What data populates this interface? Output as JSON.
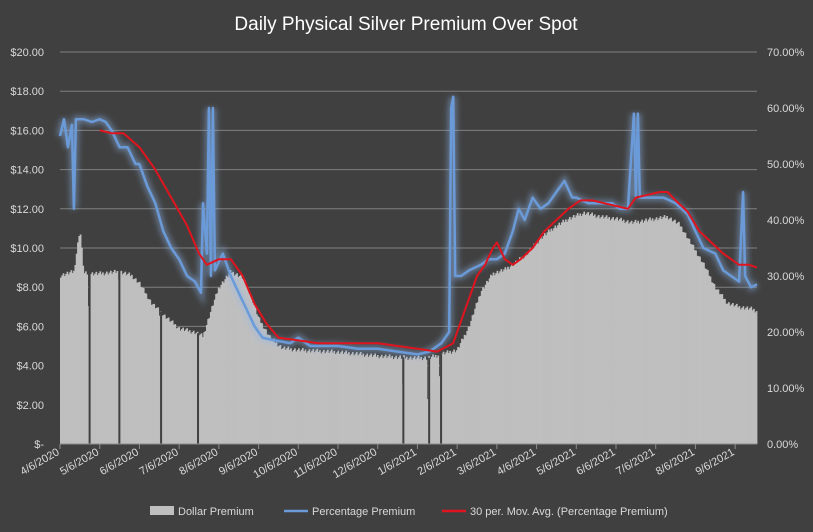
{
  "chart_data": {
    "type": "bar",
    "title": "Daily Physical Silver Premium Over Spot",
    "background": "#404040",
    "grid": true,
    "legend_position": "bottom",
    "x_ticks": [
      "4/6/2020",
      "5/6/2020",
      "6/6/2020",
      "7/6/2020",
      "8/6/2020",
      "9/6/2020",
      "10/6/2020",
      "11/6/2020",
      "12/6/2020",
      "1/6/2021",
      "2/6/2021",
      "3/6/2021",
      "4/6/2021",
      "5/6/2021",
      "6/6/2021",
      "7/6/2021",
      "8/6/2021",
      "9/6/2021"
    ],
    "y_left": {
      "ylim": [
        0,
        20
      ],
      "ticks": [
        0,
        2,
        4,
        6,
        8,
        10,
        12,
        14,
        16,
        18,
        20
      ],
      "labels": [
        "$-",
        "$2.00",
        "$4.00",
        "$6.00",
        "$8.00",
        "$10.00",
        "$12.00",
        "$14.00",
        "$16.00",
        "$18.00",
        "$20.00"
      ]
    },
    "y_right": {
      "ylim": [
        0,
        0.7
      ],
      "ticks": [
        0,
        0.1,
        0.2,
        0.3,
        0.4,
        0.5,
        0.6,
        0.7
      ],
      "labels": [
        "0.00%",
        "10.00%",
        "20.00%",
        "30.00%",
        "40.00%",
        "50.00%",
        "60.00%",
        "70.00%"
      ]
    },
    "x_range": [
      0,
      17.55
    ],
    "series": [
      {
        "name": "Dollar Premium",
        "chart": "bar",
        "axis": "left",
        "color": "#bfbfbf",
        "anchors": [
          [
            0,
            8.6
          ],
          [
            0.35,
            8.8
          ],
          [
            0.5,
            11.0
          ],
          [
            0.6,
            8.7
          ],
          [
            1.0,
            8.7
          ],
          [
            1.5,
            8.8
          ],
          [
            1.8,
            8.6
          ],
          [
            2.0,
            8.2
          ],
          [
            2.3,
            7.2
          ],
          [
            2.6,
            6.6
          ],
          [
            3.0,
            5.9
          ],
          [
            3.4,
            5.7
          ],
          [
            3.6,
            5.5
          ],
          [
            3.8,
            6.8
          ],
          [
            4.0,
            8.0
          ],
          [
            4.3,
            8.8
          ],
          [
            4.6,
            8.5
          ],
          [
            4.8,
            7.6
          ],
          [
            5.0,
            6.4
          ],
          [
            5.3,
            5.4
          ],
          [
            5.6,
            4.9
          ],
          [
            6.0,
            4.8
          ],
          [
            7.0,
            4.7
          ],
          [
            8.0,
            4.5
          ],
          [
            8.8,
            4.4
          ],
          [
            9.3,
            4.4
          ],
          [
            9.6,
            4.6
          ],
          [
            10.0,
            4.8
          ],
          [
            10.3,
            6.0
          ],
          [
            10.6,
            7.8
          ],
          [
            10.9,
            8.7
          ],
          [
            11.2,
            8.9
          ],
          [
            11.5,
            9.3
          ],
          [
            11.8,
            9.8
          ],
          [
            12.1,
            10.5
          ],
          [
            12.4,
            11.0
          ],
          [
            12.8,
            11.5
          ],
          [
            13.2,
            11.8
          ],
          [
            13.6,
            11.6
          ],
          [
            14.0,
            11.5
          ],
          [
            14.4,
            11.3
          ],
          [
            14.7,
            11.4
          ],
          [
            15.0,
            11.5
          ],
          [
            15.3,
            11.6
          ],
          [
            15.6,
            11.2
          ],
          [
            15.9,
            10.2
          ],
          [
            16.2,
            9.2
          ],
          [
            16.5,
            8.0
          ],
          [
            16.8,
            7.2
          ],
          [
            17.1,
            7.0
          ],
          [
            17.4,
            6.9
          ],
          [
            17.55,
            6.8
          ]
        ],
        "low_days": [
          [
            8.6,
            3.0
          ],
          [
            9.25,
            2.3
          ],
          [
            9.55,
            3.4
          ],
          [
            0.7,
            7.0
          ],
          [
            1.45,
            8.5
          ],
          [
            2.5,
            6.6
          ]
        ]
      },
      {
        "name": "Percentage Premium",
        "chart": "line",
        "axis": "right",
        "color": "#6a9ad8",
        "values": [
          [
            0,
            0.55
          ],
          [
            0.1,
            0.58
          ],
          [
            0.2,
            0.53
          ],
          [
            0.3,
            0.57
          ],
          [
            0.35,
            0.42
          ],
          [
            0.4,
            0.58
          ],
          [
            0.6,
            0.58
          ],
          [
            0.8,
            0.575
          ],
          [
            1.0,
            0.58
          ],
          [
            1.15,
            0.575
          ],
          [
            1.3,
            0.56
          ],
          [
            1.5,
            0.53
          ],
          [
            1.7,
            0.53
          ],
          [
            1.9,
            0.5
          ],
          [
            2.0,
            0.5
          ],
          [
            2.2,
            0.46
          ],
          [
            2.4,
            0.43
          ],
          [
            2.6,
            0.38
          ],
          [
            2.8,
            0.35
          ],
          [
            3.0,
            0.33
          ],
          [
            3.2,
            0.3
          ],
          [
            3.4,
            0.29
          ],
          [
            3.55,
            0.27
          ],
          [
            3.6,
            0.43
          ],
          [
            3.7,
            0.34
          ],
          [
            3.75,
            0.6
          ],
          [
            3.8,
            0.3
          ],
          [
            3.85,
            0.6
          ],
          [
            3.9,
            0.31
          ],
          [
            4.1,
            0.34
          ],
          [
            4.3,
            0.3
          ],
          [
            4.5,
            0.27
          ],
          [
            4.7,
            0.24
          ],
          [
            4.9,
            0.21
          ],
          [
            5.1,
            0.19
          ],
          [
            5.4,
            0.185
          ],
          [
            5.8,
            0.18
          ],
          [
            6.0,
            0.19
          ],
          [
            6.3,
            0.175
          ],
          [
            7.0,
            0.175
          ],
          [
            7.5,
            0.17
          ],
          [
            8.0,
            0.17
          ],
          [
            8.5,
            0.165
          ],
          [
            9.0,
            0.16
          ],
          [
            9.3,
            0.165
          ],
          [
            9.6,
            0.18
          ],
          [
            9.8,
            0.2
          ],
          [
            9.85,
            0.6
          ],
          [
            9.9,
            0.62
          ],
          [
            9.95,
            0.3
          ],
          [
            10.1,
            0.3
          ],
          [
            10.3,
            0.31
          ],
          [
            10.6,
            0.32
          ],
          [
            10.8,
            0.33
          ],
          [
            11.0,
            0.33
          ],
          [
            11.2,
            0.34
          ],
          [
            11.4,
            0.38
          ],
          [
            11.55,
            0.42
          ],
          [
            11.7,
            0.4
          ],
          [
            11.9,
            0.44
          ],
          [
            12.1,
            0.42
          ],
          [
            12.3,
            0.43
          ],
          [
            12.5,
            0.45
          ],
          [
            12.7,
            0.47
          ],
          [
            12.9,
            0.44
          ],
          [
            13.0,
            0.44
          ],
          [
            13.3,
            0.43
          ],
          [
            13.6,
            0.43
          ],
          [
            13.9,
            0.43
          ],
          [
            14.1,
            0.42
          ],
          [
            14.3,
            0.42
          ],
          [
            14.45,
            0.59
          ],
          [
            14.5,
            0.44
          ],
          [
            14.55,
            0.59
          ],
          [
            14.6,
            0.44
          ],
          [
            14.9,
            0.44
          ],
          [
            15.2,
            0.44
          ],
          [
            15.5,
            0.43
          ],
          [
            15.8,
            0.41
          ],
          [
            16.0,
            0.38
          ],
          [
            16.2,
            0.35
          ],
          [
            16.5,
            0.34
          ],
          [
            16.7,
            0.31
          ],
          [
            16.9,
            0.3
          ],
          [
            17.1,
            0.29
          ],
          [
            17.2,
            0.45
          ],
          [
            17.25,
            0.3
          ],
          [
            17.4,
            0.28
          ],
          [
            17.55,
            0.285
          ]
        ]
      },
      {
        "name": "30 per. Mov. Avg. (Percentage Premium)",
        "chart": "line",
        "axis": "right",
        "color": "#e0141e",
        "values": [
          [
            1.0,
            0.56
          ],
          [
            1.3,
            0.555
          ],
          [
            1.6,
            0.555
          ],
          [
            2.0,
            0.53
          ],
          [
            2.4,
            0.49
          ],
          [
            2.8,
            0.44
          ],
          [
            3.2,
            0.39
          ],
          [
            3.5,
            0.34
          ],
          [
            3.7,
            0.32
          ],
          [
            4.0,
            0.33
          ],
          [
            4.3,
            0.33
          ],
          [
            4.6,
            0.3
          ],
          [
            4.9,
            0.25
          ],
          [
            5.2,
            0.215
          ],
          [
            5.5,
            0.19
          ],
          [
            6.0,
            0.185
          ],
          [
            6.5,
            0.18
          ],
          [
            7.0,
            0.18
          ],
          [
            7.5,
            0.18
          ],
          [
            8.0,
            0.18
          ],
          [
            8.5,
            0.175
          ],
          [
            9.0,
            0.17
          ],
          [
            9.5,
            0.165
          ],
          [
            9.9,
            0.18
          ],
          [
            10.1,
            0.22
          ],
          [
            10.3,
            0.26
          ],
          [
            10.5,
            0.3
          ],
          [
            10.7,
            0.32
          ],
          [
            10.9,
            0.35
          ],
          [
            11.0,
            0.36
          ],
          [
            11.2,
            0.33
          ],
          [
            11.4,
            0.32
          ],
          [
            11.6,
            0.33
          ],
          [
            11.9,
            0.35
          ],
          [
            12.2,
            0.38
          ],
          [
            12.5,
            0.4
          ],
          [
            12.8,
            0.42
          ],
          [
            13.1,
            0.435
          ],
          [
            13.4,
            0.435
          ],
          [
            13.7,
            0.43
          ],
          [
            14.0,
            0.425
          ],
          [
            14.3,
            0.42
          ],
          [
            14.5,
            0.44
          ],
          [
            14.8,
            0.445
          ],
          [
            15.1,
            0.45
          ],
          [
            15.3,
            0.45
          ],
          [
            15.5,
            0.435
          ],
          [
            15.8,
            0.415
          ],
          [
            16.1,
            0.38
          ],
          [
            16.4,
            0.36
          ],
          [
            16.7,
            0.34
          ],
          [
            16.9,
            0.33
          ],
          [
            17.1,
            0.32
          ],
          [
            17.35,
            0.32
          ],
          [
            17.55,
            0.315
          ]
        ]
      }
    ]
  }
}
